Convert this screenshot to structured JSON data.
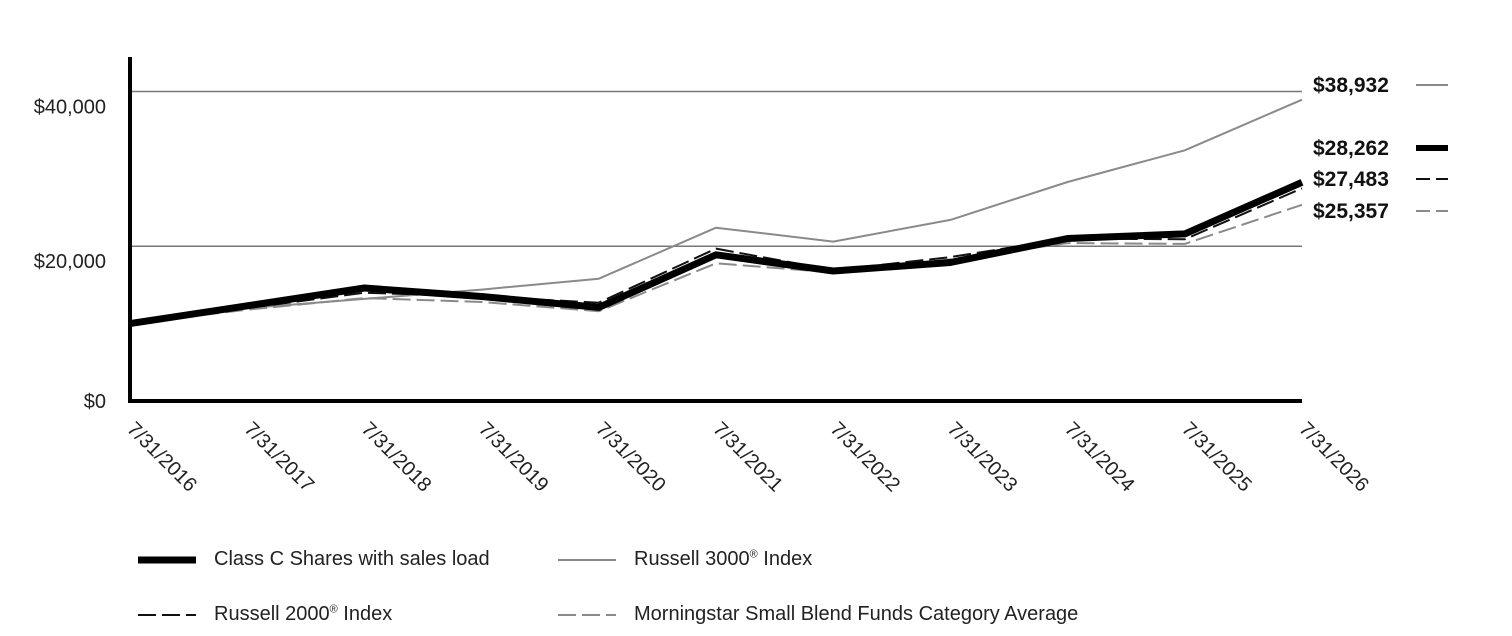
{
  "chart_data": {
    "type": "line",
    "x": [
      "7/31/2016",
      "7/31/2017",
      "7/31/2018",
      "7/31/2019",
      "7/31/2020",
      "7/31/2021",
      "7/31/2022",
      "7/31/2023",
      "7/31/2024",
      "7/31/2025",
      "7/31/2026"
    ],
    "yticks": [
      {
        "value": 0,
        "label": "$0"
      },
      {
        "value": 20000,
        "label": "$20,000"
      },
      {
        "value": 40000,
        "label": "$40,000"
      }
    ],
    "ylim": [
      0,
      42000
    ],
    "grid": true,
    "legend_position": "bottom",
    "series": [
      {
        "name": "Russell 3000",
        "suffix": " Index",
        "sup": "®",
        "values": [
          10000,
          12000,
          13200,
          14400,
          15800,
          22400,
          20600,
          23400,
          28300,
          32400,
          38932
        ],
        "end_label": "$38,932",
        "color": "#8a8a8a",
        "style": "solid-thin"
      },
      {
        "name": "Morningstar Small Blend Funds Category Average",
        "suffix": "",
        "sup": "",
        "values": [
          10000,
          11800,
          13300,
          12800,
          11600,
          17800,
          16600,
          18300,
          20400,
          20300,
          25357
        ],
        "end_label": "$25,357",
        "color": "#8a8a8a",
        "style": "dashed"
      },
      {
        "name": "Russell 2000",
        "suffix": " Index",
        "sup": "®",
        "values": [
          10000,
          12000,
          14000,
          13500,
          12700,
          19700,
          16900,
          18600,
          21000,
          20900,
          27483
        ],
        "end_label": "$27,483",
        "color": "#111111",
        "style": "dashed"
      },
      {
        "name": "Class C Shares with sales load",
        "suffix": "",
        "sup": "",
        "values": [
          10000,
          12300,
          14600,
          13500,
          12100,
          18900,
          16800,
          17900,
          21000,
          21600,
          28262
        ],
        "end_label": "$28,262",
        "color": "#000000",
        "style": "solid-thick"
      }
    ]
  }
}
